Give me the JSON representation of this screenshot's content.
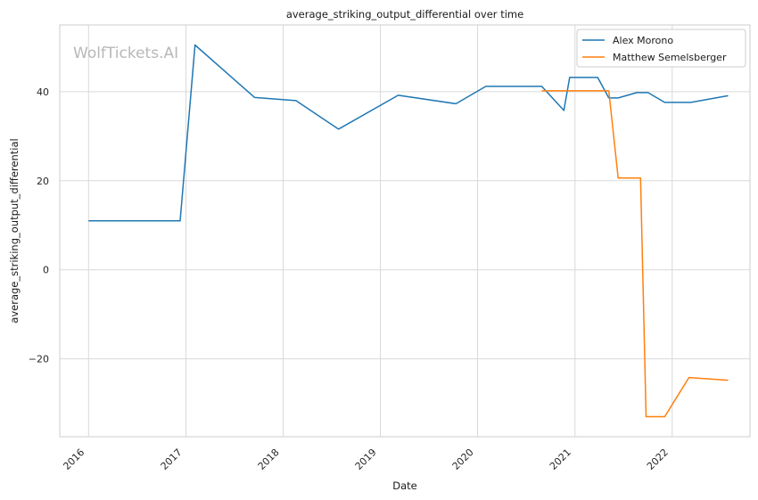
{
  "watermark": "WolfTickets.AI",
  "chart_data": {
    "type": "line",
    "title": "average_striking_output_differential over time",
    "xlabel": "Date",
    "ylabel": "average_striking_output_differential",
    "x_ticks": [
      "2016",
      "2017",
      "2018",
      "2019",
      "2020",
      "2021",
      "2022"
    ],
    "y_ticks": [
      -20,
      0,
      20,
      40
    ],
    "xlim": [
      "2015-09-15",
      "2022-10-20"
    ],
    "ylim": [
      -37.5,
      55
    ],
    "grid": true,
    "legend_position": "top-right",
    "series": [
      {
        "name": "Alex Morono",
        "color": "#1f77b4",
        "points": [
          [
            "2016-01-01",
            11.0
          ],
          [
            "2016-12-10",
            11.0
          ],
          [
            "2017-02-04",
            50.5
          ],
          [
            "2017-09-16",
            38.7
          ],
          [
            "2018-02-18",
            38.0
          ],
          [
            "2018-07-28",
            31.6
          ],
          [
            "2019-03-09",
            39.2
          ],
          [
            "2019-10-12",
            37.3
          ],
          [
            "2020-02-01",
            41.2
          ],
          [
            "2020-08-29",
            41.2
          ],
          [
            "2020-11-20",
            35.8
          ],
          [
            "2020-12-12",
            43.2
          ],
          [
            "2021-03-27",
            43.2
          ],
          [
            "2021-05-08",
            38.6
          ],
          [
            "2021-06-12",
            38.6
          ],
          [
            "2021-08-21",
            39.8
          ],
          [
            "2021-10-02",
            39.8
          ],
          [
            "2021-12-04",
            37.6
          ],
          [
            "2022-03-12",
            37.6
          ],
          [
            "2022-07-30",
            39.1
          ]
        ]
      },
      {
        "name": "Matthew Semelsberger",
        "color": "#ff7f0e",
        "points": [
          [
            "2020-08-29",
            40.2
          ],
          [
            "2021-05-08",
            40.2
          ],
          [
            "2021-06-12",
            20.6
          ],
          [
            "2021-09-04",
            20.6
          ],
          [
            "2021-09-25",
            -33.0
          ],
          [
            "2021-12-04",
            -33.0
          ],
          [
            "2022-03-05",
            -24.2
          ],
          [
            "2022-07-30",
            -24.8
          ]
        ]
      }
    ]
  }
}
